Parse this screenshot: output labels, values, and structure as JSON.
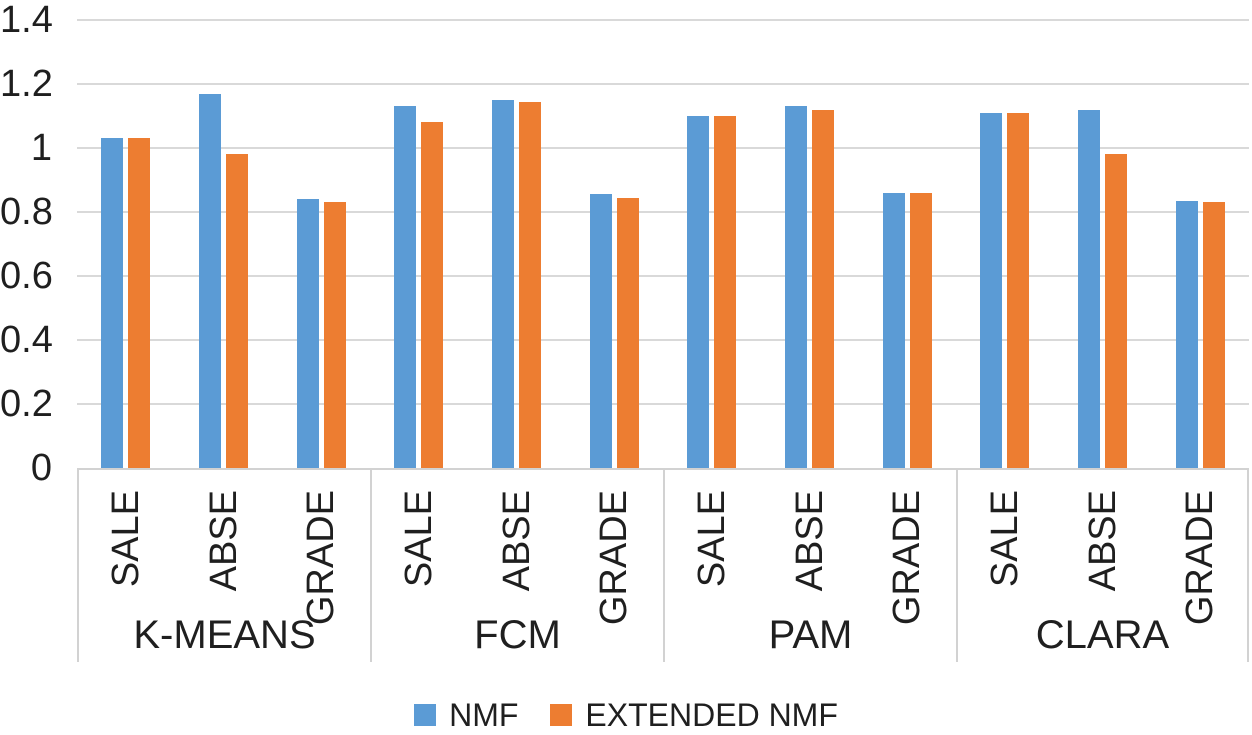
{
  "figure": {
    "background": "#ffffff",
    "text_color": "#1f1f1f",
    "gridline_color": "#d9d9d9",
    "axis_line_color": "#d2d2d2"
  },
  "chart_data": {
    "type": "bar",
    "title": "",
    "xlabel": "",
    "ylabel": "",
    "groups": [
      "K-MEANS",
      "FCM",
      "PAM",
      "CLARA"
    ],
    "categories_per_group": [
      "SALE",
      "ABSE",
      "GRADE"
    ],
    "series": [
      {
        "name": "NMF",
        "color": "#5b9bd5",
        "values": [
          1.03,
          1.17,
          0.84,
          1.13,
          1.15,
          0.855,
          1.1,
          1.13,
          0.86,
          1.11,
          1.12,
          0.835
        ]
      },
      {
        "name": "EXTENDED NMF",
        "color": "#ed7d31",
        "values": [
          1.03,
          0.98,
          0.83,
          1.08,
          1.145,
          0.845,
          1.1,
          1.12,
          0.86,
          1.11,
          0.98,
          0.83
        ]
      }
    ],
    "y_axis": {
      "ticks": [
        "1.4",
        "1.2",
        "1",
        "0.8",
        "0.6",
        "0.4",
        "0.2",
        "0"
      ],
      "tick_values": [
        1.4,
        1.2,
        1,
        0.8,
        0.6,
        0.4,
        0.2,
        0
      ],
      "ylim": [
        0,
        1.4
      ],
      "gridlines": true
    },
    "legend": {
      "position": "bottom",
      "entries": [
        "NMF",
        "EXTENDED NMF"
      ]
    }
  }
}
